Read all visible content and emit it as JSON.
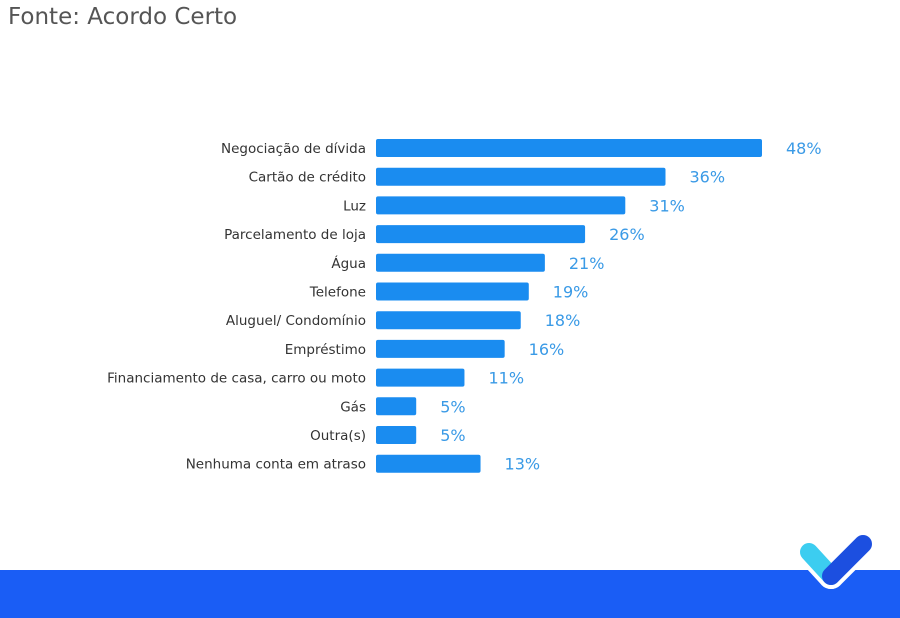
{
  "source": "Fonte: Acordo Certo",
  "colors": {
    "bar": "#1a8cf0",
    "value_label": "#3a9ae6",
    "band": "#1a5df5",
    "logo_light": "#3ccdf0",
    "logo_dark": "#1c4fe0"
  },
  "logo": {
    "icon": "checkmark-logo"
  },
  "chart_data": {
    "type": "bar",
    "orientation": "horizontal",
    "categories": [
      "Negociação de dívida",
      "Cartão de crédito",
      "Luz",
      "Parcelamento de loja",
      "Água",
      "Telefone",
      "Aluguel/ Condomínio",
      "Empréstimo",
      "Financiamento de casa, carro ou moto",
      "Gás",
      "Outra(s)",
      "Nenhuma conta em atraso"
    ],
    "values": [
      48,
      36,
      31,
      26,
      21,
      19,
      18,
      16,
      11,
      5,
      5,
      13
    ],
    "value_labels": [
      "48%",
      "36%",
      "31%",
      "26%",
      "21%",
      "19%",
      "18%",
      "16%",
      "11%",
      "5%",
      "5%",
      "13%"
    ],
    "unit": "%",
    "grid": false,
    "xlim": [
      0,
      48
    ]
  }
}
